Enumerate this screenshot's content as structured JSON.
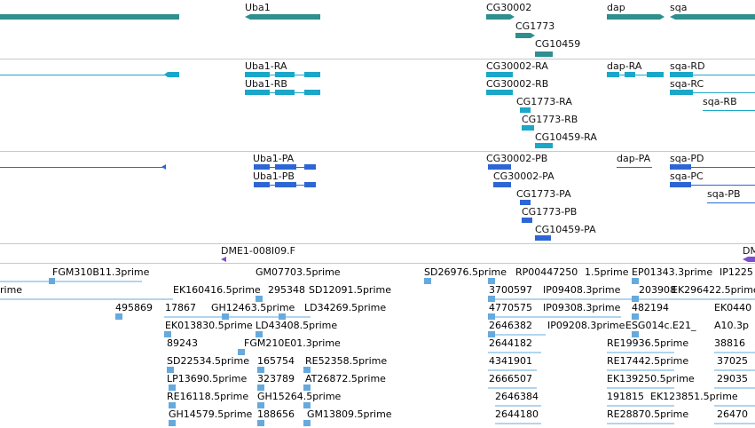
{
  "colors": {
    "gene": "#2f8f8f",
    "transcript": "#1aa7c9",
    "protein": "#2d66d4",
    "clone": "#7d4fcf",
    "est": "#66aadd",
    "separator": "#c8c8c8"
  },
  "gene_track": {
    "labels": [
      "Uba1",
      "CG30002",
      "CG1773",
      "CG10459",
      "dap",
      "sqa"
    ]
  },
  "transcript_track": {
    "labels": [
      "Uba1-RA",
      "Uba1-RB",
      "CG30002-RA",
      "CG30002-RB",
      "CG1773-RA",
      "CG1773-RB",
      "CG10459-RA",
      "dap-RA",
      "sqa-RD",
      "sqa-RC",
      "sqa-RB"
    ]
  },
  "protein_track": {
    "labels": [
      "Uba1-PA",
      "Uba1-PB",
      "CG30002-PB",
      "CG30002-PA",
      "CG1773-PA",
      "CG1773-PB",
      "CG10459-PA",
      "dap-PA",
      "sqa-PD",
      "sqa-PC",
      "sqa-PB"
    ]
  },
  "clone_track": {
    "labels": [
      "DME1-008I09.F",
      "DME"
    ]
  },
  "est_track": {
    "labels": [
      "FGM310B11.3prime",
      "GM07703.5prime",
      "SD26976.5prime",
      "RP00447250",
      "1.5prime",
      "EP01343.3prime",
      "IP1225",
      "rime",
      "EK160416.5prime",
      "295348",
      "SD12091.5prime",
      "3700597",
      "IP09408.3prime",
      "203908",
      "EK296422.5prime",
      "495869",
      "17867",
      "GH12463.5prime",
      "LD34269.5prime",
      "4770575",
      "IP09308.3prime",
      "482194",
      "EK0440",
      "EK013830.5prime",
      "LD43408.5prime",
      "2646382",
      "IP09208.3prime",
      "ESG014c.E21_",
      "A10.3p",
      "89243",
      "FGM210E01.3prime",
      "2644182",
      "RE19936.5prime",
      "38816",
      "SD22534.5prime",
      "165754",
      "RE52358.5prime",
      "4341901",
      "RE17442.5prime",
      "37025",
      "LP13690.5prime",
      "323789",
      "AT26872.5prime",
      "2666507",
      "EK139250.5prime",
      "29035",
      "RE16118.5prime",
      "GH15264.5prime",
      "2646384",
      "191815",
      "EK123851.5prime",
      "GH14579.5prime",
      "188656",
      "GM13809.5prime",
      "2644180",
      "RE28870.5prime",
      "26470"
    ]
  }
}
